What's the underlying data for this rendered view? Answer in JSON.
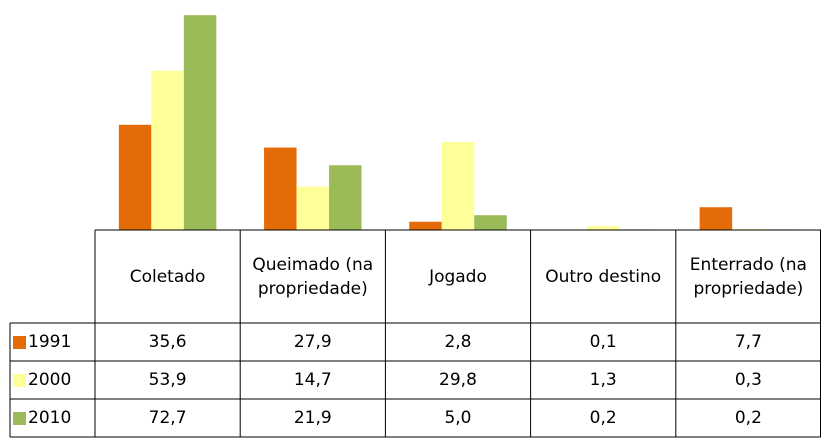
{
  "chart_data": {
    "type": "bar",
    "categories": [
      "Coletado",
      "Queimado (na propriedade)",
      "Jogado",
      "Outro destino",
      "Enterrado (na propriedade)"
    ],
    "series": [
      {
        "name": "1991",
        "color": "#e36c09",
        "values": [
          35.6,
          27.9,
          2.8,
          0.1,
          7.7
        ],
        "value_labels": [
          "35,6",
          "27,9",
          "2,8",
          "0,1",
          "7,7"
        ]
      },
      {
        "name": "2000",
        "color": "#ffff99",
        "values": [
          53.9,
          14.7,
          29.8,
          1.3,
          0.3
        ],
        "value_labels": [
          "53,9",
          "14,7",
          "29,8",
          "1,3",
          "0,3"
        ]
      },
      {
        "name": "2010",
        "color": "#9bbb59",
        "values": [
          72.7,
          21.9,
          5.0,
          0.2,
          0.2
        ],
        "value_labels": [
          "72,7",
          "21,9",
          "5,0",
          "0,2",
          "0,2"
        ]
      }
    ]
  }
}
